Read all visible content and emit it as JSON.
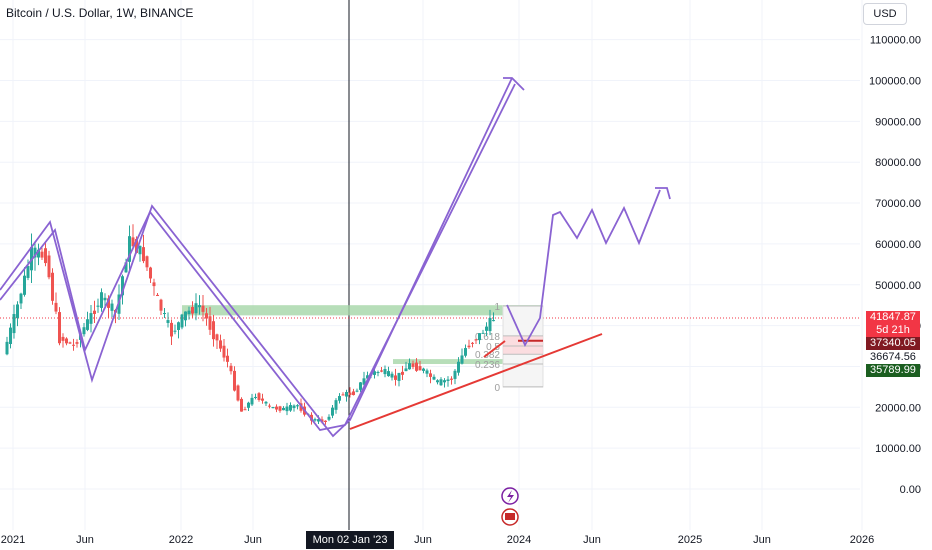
{
  "header": {
    "symbol_title": "Bitcoin / U.S. Dollar, 1W, BINANCE",
    "currency_button": "USD"
  },
  "colors": {
    "drawing_purple": "#8a63d2",
    "trend_red": "#e53935",
    "zone_green": "#a5d6a7",
    "up_candle": "#26a69a",
    "down_candle": "#ef5350",
    "price_line": "#f23645",
    "crosshair": "#131722"
  },
  "price_tags": {
    "last_price": "41847.87",
    "countdown": "5d 21h",
    "level_a": "37340.05",
    "level_b": "36674.56",
    "level_c": "35789.99"
  },
  "crosshair_time_label": "Mon 02 Jan '23",
  "fib_levels": [
    "1",
    "0.618",
    "0.5",
    "0.382",
    "0.236",
    "0"
  ],
  "icons": [
    "flash-icon",
    "flag-icon"
  ],
  "chart_data": {
    "type": "candlestick",
    "title": "Bitcoin / U.S. Dollar, 1W, BINANCE",
    "ylim": [
      0,
      115000
    ],
    "y_ticks": [
      "0.00",
      "10000.00",
      "20000.00",
      "30000.00",
      "40000.00",
      "50000.00",
      "60000.00",
      "70000.00",
      "80000.00",
      "90000.00",
      "100000.00",
      "110000.00"
    ],
    "x_ticks": [
      "2021",
      "Jun",
      "2022",
      "Jun",
      "Mon 02 Jan '23",
      "Jun",
      "2024",
      "Jun",
      "2025",
      "Jun",
      "2026"
    ],
    "price_series": {
      "name": "",
      "x": [
        "2021-01",
        "2021-02",
        "2021-03",
        "2021-04",
        "2021-05",
        "2021-06",
        "2021-07",
        "2021-08",
        "2021-09",
        "2021-10",
        "2021-11",
        "2021-12",
        "2022-01",
        "2022-02",
        "2022-03",
        "2022-04",
        "2022-05",
        "2022-06",
        "2022-07",
        "2022-08",
        "2022-09",
        "2022-10",
        "2022-11",
        "2022-12",
        "2023-01",
        "2023-02",
        "2023-03",
        "2023-04",
        "2023-05",
        "2023-06",
        "2023-07",
        "2023-08",
        "2023-09",
        "2023-10",
        "2023-11",
        "2023-12"
      ],
      "close": [
        33000,
        45000,
        58000,
        57000,
        37000,
        35000,
        41000,
        47000,
        43000,
        61000,
        57000,
        46000,
        38000,
        43000,
        45000,
        38000,
        31000,
        19000,
        23000,
        20000,
        19500,
        20500,
        17000,
        16500,
        23000,
        23500,
        28000,
        29000,
        27000,
        30500,
        29000,
        26000,
        27000,
        34500,
        37700,
        41800
      ]
    },
    "annotations": {
      "green_zones": [
        "resistance",
        "support"
      ],
      "red_trendline": "ascending support",
      "purple_paths": [
        "historical wave 2021",
        "projected impulse to ~100000",
        "projected zigzag 60000-70000"
      ]
    }
  }
}
